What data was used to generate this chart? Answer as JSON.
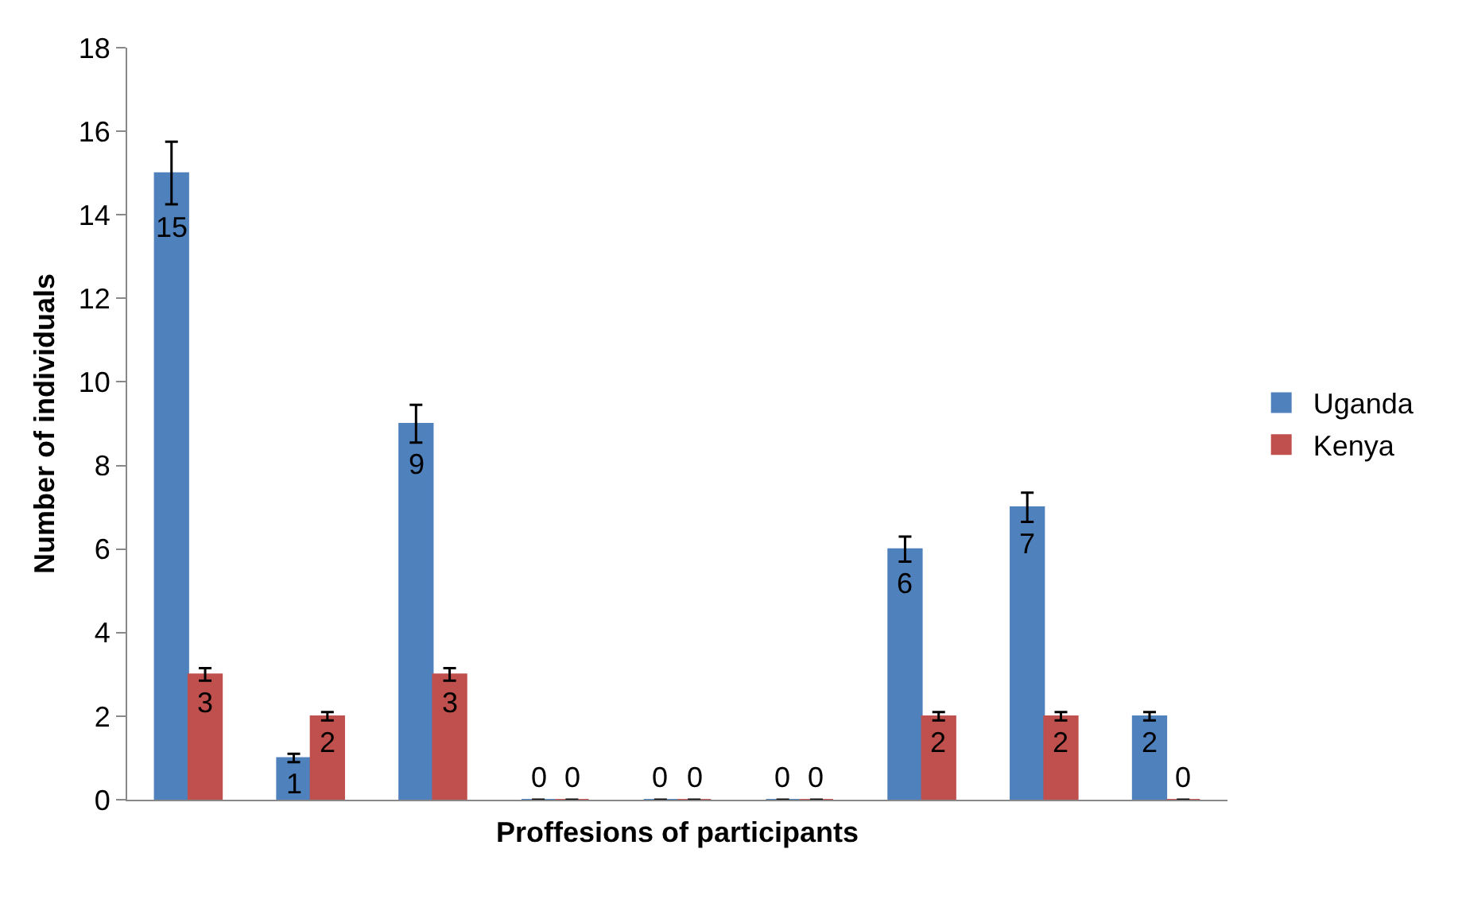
{
  "chart_data": {
    "type": "bar",
    "xlabel": "Proffesions of participants",
    "ylabel": "Number of individuals",
    "categories": [
      null,
      null,
      null,
      null,
      null,
      null,
      null,
      null,
      null
    ],
    "series": [
      {
        "name": "Uganda",
        "color": "#4f81bd",
        "values": [
          15,
          1,
          9,
          0,
          0,
          0,
          6,
          7,
          2
        ],
        "errors": [
          0.75,
          0.1,
          0.45,
          null,
          null,
          null,
          0.3,
          0.35,
          0.1
        ]
      },
      {
        "name": "Kenya",
        "color": "#c0504d",
        "values": [
          3,
          2,
          3,
          0,
          0,
          0,
          2,
          2,
          0
        ],
        "errors": [
          0.15,
          0.1,
          0.15,
          null,
          null,
          null,
          0.1,
          0.1,
          null
        ]
      }
    ],
    "ylim": [
      0,
      18
    ],
    "yticks": [
      0,
      2,
      4,
      6,
      8,
      10,
      12,
      14,
      16,
      18
    ],
    "legend": "right",
    "data_labels": true
  }
}
